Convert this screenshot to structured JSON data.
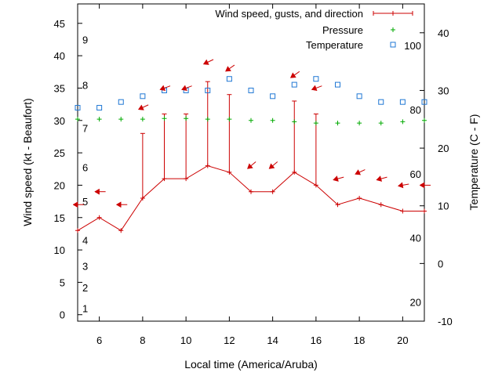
{
  "chart_data": {
    "type": "line",
    "xlabel": "Local time (America/Aruba)",
    "ylabel": "Wind speed (kt - Beaufort)",
    "y2label": "Temperature (C - F)",
    "xlim": [
      5,
      21
    ],
    "ylim": [
      -1,
      48
    ],
    "y2lim": [
      -10,
      45
    ],
    "x_ticks": [
      6,
      8,
      10,
      12,
      14,
      16,
      18,
      20
    ],
    "y_ticks": [
      0,
      5,
      10,
      15,
      20,
      25,
      30,
      35,
      40,
      45
    ],
    "y2_ticks": [
      -10,
      0,
      10,
      20,
      30,
      40
    ],
    "beaufort_labels": [
      {
        "text": "1",
        "kt": 1
      },
      {
        "text": "2",
        "kt": 4.2
      },
      {
        "text": "3",
        "kt": 7.5
      },
      {
        "text": "4",
        "kt": 11.5
      },
      {
        "text": "5",
        "kt": 17.5
      },
      {
        "text": "6",
        "kt": 22.8
      },
      {
        "text": "7",
        "kt": 28.8
      },
      {
        "text": "8",
        "kt": 35.5
      },
      {
        "text": "9",
        "kt": 42.5
      }
    ],
    "fahrenheit_labels": [
      {
        "text": "20",
        "f": 20
      },
      {
        "text": "40",
        "f": 40
      },
      {
        "text": "60",
        "f": 60
      },
      {
        "text": "80",
        "f": 80
      },
      {
        "text": "100",
        "f": 100
      }
    ],
    "legend": [
      {
        "name": "Wind speed, gusts, and direction",
        "color": "#cc0000",
        "marker": "line-plus"
      },
      {
        "name": "Pressure",
        "color": "#00aa00",
        "marker": "plus"
      },
      {
        "name": "Temperature",
        "color": "#1f77d4",
        "marker": "square"
      }
    ],
    "legend_position": "top-right",
    "series": [
      {
        "name": "Wind speed, gusts, and direction",
        "x": [
          5,
          6,
          7,
          8,
          9,
          10,
          11,
          12,
          13,
          14,
          15,
          16,
          17,
          18,
          19,
          20,
          21
        ],
        "values": [
          13,
          15,
          13,
          18,
          21,
          21,
          23,
          22,
          19,
          19,
          22,
          20,
          17,
          18,
          17,
          16,
          16
        ],
        "gusts": [
          null,
          null,
          null,
          28,
          31,
          31,
          36,
          34,
          null,
          null,
          33,
          31,
          null,
          null,
          null,
          null,
          null
        ]
      },
      {
        "name": "Pressure",
        "x": [
          5,
          6,
          7,
          8,
          9,
          10,
          11,
          12,
          13,
          14,
          15,
          16,
          17,
          18,
          19,
          20,
          21
        ],
        "values_kt": [
          30.2,
          30.2,
          30.2,
          30.2,
          30.3,
          30.3,
          30.2,
          30.2,
          30.0,
          30.0,
          29.8,
          29.6,
          29.6,
          29.6,
          29.6,
          29.8,
          30.0
        ]
      },
      {
        "name": "Temperature",
        "x": [
          5,
          6,
          7,
          8,
          9,
          10,
          11,
          12,
          13,
          14,
          15,
          16,
          17,
          18,
          19,
          20,
          21
        ],
        "values": [
          27,
          27,
          28,
          29,
          30,
          30,
          30,
          32,
          30,
          29,
          31,
          32,
          31,
          29,
          28,
          28,
          28
        ]
      }
    ],
    "wind_direction_arrows": [
      {
        "x": 5,
        "kt": 17,
        "angle": 0
      },
      {
        "x": 6,
        "kt": 19,
        "angle": 0
      },
      {
        "x": 7,
        "kt": 17,
        "angle": 0
      },
      {
        "x": 8,
        "kt": 32,
        "angle": -25
      },
      {
        "x": 9,
        "kt": 35,
        "angle": -20
      },
      {
        "x": 10,
        "kt": 35,
        "angle": -20
      },
      {
        "x": 11,
        "kt": 39,
        "angle": -25
      },
      {
        "x": 12,
        "kt": 38,
        "angle": -35
      },
      {
        "x": 13,
        "kt": 23,
        "angle": -40
      },
      {
        "x": 14,
        "kt": 23,
        "angle": -40
      },
      {
        "x": 15,
        "kt": 37,
        "angle": -35
      },
      {
        "x": 16,
        "kt": 35,
        "angle": -20
      },
      {
        "x": 17,
        "kt": 21,
        "angle": -15
      },
      {
        "x": 18,
        "kt": 22,
        "angle": -25
      },
      {
        "x": 19,
        "kt": 21,
        "angle": -15
      },
      {
        "x": 20,
        "kt": 20,
        "angle": -10
      },
      {
        "x": 21,
        "kt": 20,
        "angle": 0
      }
    ]
  }
}
